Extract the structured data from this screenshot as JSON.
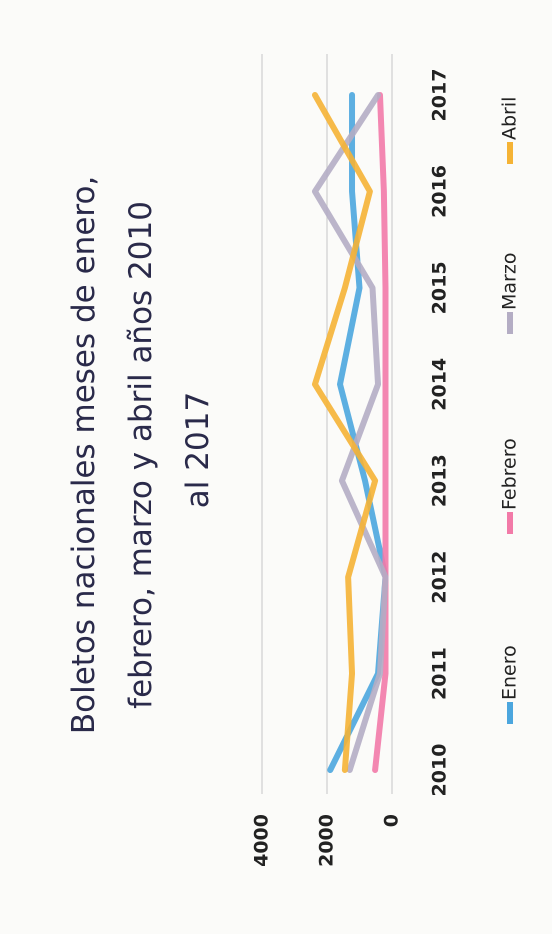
{
  "chart_data": {
    "type": "line",
    "title": "Boletos nacionales meses de enero, febrero, marzo y abril años 2010 al 2017",
    "categories": [
      "2010",
      "2011",
      "2012",
      "2013",
      "2014",
      "2015",
      "2016",
      "2017"
    ],
    "series": [
      {
        "name": "Enero",
        "color": "#4ba6de",
        "values": [
          1900,
          430,
          200,
          830,
          1600,
          1000,
          1230,
          1230
        ]
      },
      {
        "name": "Febrero",
        "color": "#f27aa8",
        "values": [
          520,
          200,
          200,
          200,
          200,
          200,
          250,
          370
        ]
      },
      {
        "name": "Marzo",
        "color": "#b4adc4",
        "values": [
          1300,
          370,
          200,
          1540,
          430,
          600,
          2370,
          430
        ]
      },
      {
        "name": "Abril",
        "color": "#f5b335",
        "values": [
          1450,
          1230,
          1350,
          520,
          2370,
          1450,
          680,
          2370
        ]
      }
    ],
    "ylim": [
      0,
      4000
    ],
    "yticks": [
      0,
      2000,
      4000
    ],
    "grid": true,
    "legend": "bottom"
  }
}
